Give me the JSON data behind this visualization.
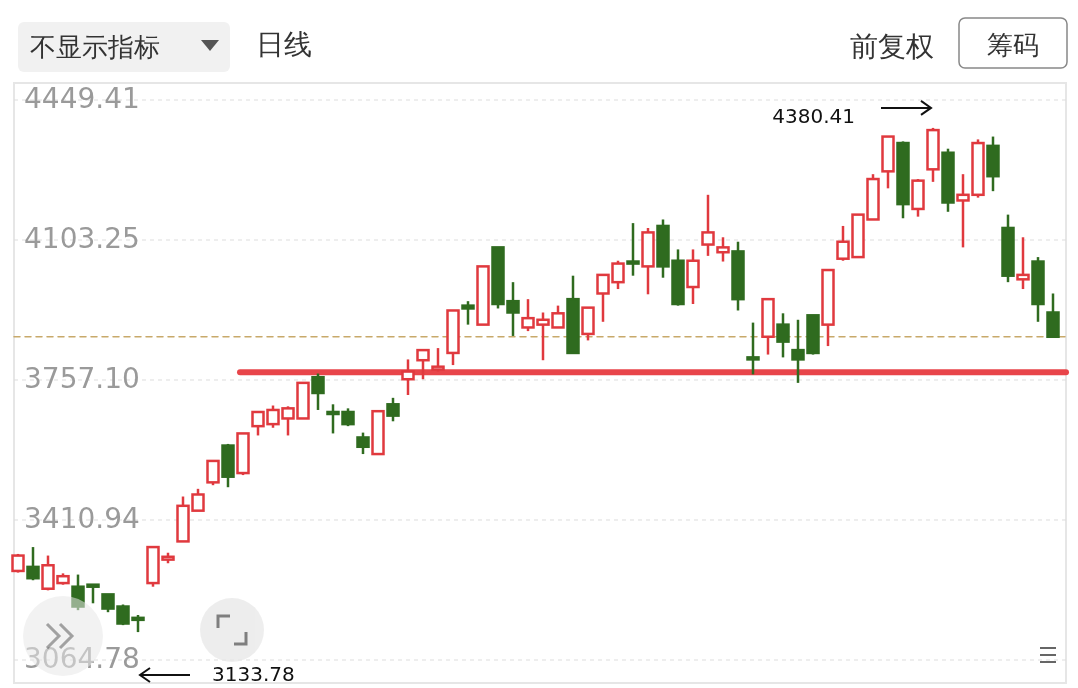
{
  "chart_data": {
    "type": "candlestick",
    "categories": [
      null,
      null,
      null,
      null,
      null,
      null,
      null,
      null,
      null,
      null,
      null,
      null,
      null,
      null,
      null,
      null,
      null,
      null,
      null,
      null,
      null,
      null,
      null,
      null,
      null,
      null,
      null,
      null,
      null,
      null,
      null,
      null,
      null,
      null,
      null,
      null,
      null,
      null,
      null,
      null,
      null,
      null,
      null,
      null,
      null,
      null,
      null,
      null,
      null,
      null,
      null,
      null,
      null,
      null,
      null,
      null,
      null,
      null,
      null,
      null,
      null,
      null,
      null,
      null,
      null,
      null,
      null,
      null,
      null,
      null
    ],
    "ohlc": [
      [
        3285,
        3327,
        3281,
        3323
      ],
      [
        3295,
        3344,
        3262,
        3267
      ],
      [
        3241,
        3323,
        3237,
        3299
      ],
      [
        3255,
        3279,
        3251,
        3272
      ],
      [
        3246,
        3276,
        3188,
        3197
      ],
      [
        3251,
        3251,
        3205,
        3246
      ],
      [
        3227,
        3227,
        3183,
        3192
      ],
      [
        3197,
        3202,
        3151,
        3155
      ],
      [
        3169,
        3176,
        3133.78,
        3165
      ],
      [
        3255,
        3344,
        3246,
        3344
      ],
      [
        3313,
        3330,
        3304,
        3320
      ],
      [
        3358,
        3469,
        3358,
        3446
      ],
      [
        3434,
        3488,
        3434,
        3474
      ],
      [
        3504,
        3557,
        3497,
        3557
      ],
      [
        3595,
        3599,
        3492,
        3518
      ],
      [
        3527,
        3625,
        3522,
        3625
      ],
      [
        3643,
        3678,
        3620,
        3678
      ],
      [
        3648,
        3694,
        3639,
        3683
      ],
      [
        3662,
        3692,
        3620,
        3687
      ],
      [
        3662,
        3750,
        3662,
        3750
      ],
      [
        3764,
        3773,
        3683,
        3725
      ],
      [
        3678,
        3697,
        3625,
        3674
      ],
      [
        3678,
        3687,
        3643,
        3648
      ],
      [
        3615,
        3627,
        3574,
        3592
      ],
      [
        3574,
        3680,
        3574,
        3680
      ],
      [
        3697,
        3713,
        3655,
        3669
      ],
      [
        3759,
        3808,
        3720,
        3778
      ],
      [
        3806,
        3831,
        3759,
        3831
      ],
      [
        3783,
        3836,
        3778,
        3790
      ],
      [
        3824,
        3929,
        3794,
        3929
      ],
      [
        3941,
        3952,
        3894,
        3934
      ],
      [
        3894,
        4038,
        3894,
        4038
      ],
      [
        4085,
        4085,
        3934,
        3945
      ],
      [
        3952,
        3999,
        3866,
        3924
      ],
      [
        3887,
        3957,
        3878,
        3910
      ],
      [
        3894,
        3924,
        3806,
        3906
      ],
      [
        3887,
        3941,
        3887,
        3922
      ],
      [
        3957,
        4015,
        3824,
        3824
      ],
      [
        3871,
        3936,
        3855,
        3936
      ],
      [
        3971,
        4017,
        3901,
        4017
      ],
      [
        3999,
        4052,
        3982,
        4045
      ],
      [
        4050,
        4145,
        4015,
        4045
      ],
      [
        4038,
        4133,
        3969,
        4122
      ],
      [
        4138,
        4154,
        4010,
        4038
      ],
      [
        4052,
        4080,
        3941,
        3945
      ],
      [
        3987,
        4080,
        3945,
        4052
      ],
      [
        4092,
        4215,
        4064,
        4122
      ],
      [
        4073,
        4110,
        4050,
        4085
      ],
      [
        4075,
        4099,
        3929,
        3957
      ],
      [
        3813,
        3899,
        3771,
        3808
      ],
      [
        3864,
        3957,
        3820,
        3957
      ],
      [
        3894,
        3922,
        3813,
        3852
      ],
      [
        3831,
        3906,
        3750,
        3808
      ],
      [
        3917,
        3917,
        3820,
        3824
      ],
      [
        3894,
        4029,
        3841,
        4029
      ],
      [
        4057,
        4138,
        4052,
        4099
      ],
      [
        4061,
        4166,
        4061,
        4166
      ],
      [
        4154,
        4266,
        4154,
        4254
      ],
      [
        4273,
        4359,
        4231,
        4359
      ],
      [
        4343,
        4347,
        4157,
        4192
      ],
      [
        4180,
        4254,
        4161,
        4250
      ],
      [
        4278,
        4380.41,
        4247,
        4375
      ],
      [
        4319,
        4329,
        4173,
        4196
      ],
      [
        4201,
        4266,
        4085,
        4215
      ],
      [
        4215,
        4352,
        4208,
        4343
      ],
      [
        4336,
        4359,
        4224,
        4261
      ],
      [
        4133,
        4166,
        3999,
        4015
      ],
      [
        4006,
        4110,
        3982,
        4017
      ],
      [
        4050,
        4061,
        3901,
        3945
      ],
      [
        3924,
        3971,
        3864,
        3864
      ]
    ],
    "colors": [
      "#e0393e",
      "#2f6b1f",
      "#e0393e",
      "#e0393e",
      "#2f6b1f",
      "#2f6b1f",
      "#2f6b1f",
      "#2f6b1f",
      "#2f6b1f",
      "#e0393e",
      "#e0393e",
      "#e0393e",
      "#e0393e",
      "#e0393e",
      "#2f6b1f",
      "#e0393e",
      "#e0393e",
      "#e0393e",
      "#e0393e",
      "#e0393e",
      "#2f6b1f",
      "#2f6b1f",
      "#2f6b1f",
      "#2f6b1f",
      "#e0393e",
      "#2f6b1f",
      "#e0393e",
      "#e0393e",
      "#e0393e",
      "#e0393e",
      "#2f6b1f",
      "#e0393e",
      "#2f6b1f",
      "#2f6b1f",
      "#e0393e",
      "#e0393e",
      "#e0393e",
      "#2f6b1f",
      "#e0393e",
      "#e0393e",
      "#e0393e",
      "#2f6b1f",
      "#e0393e",
      "#2f6b1f",
      "#2f6b1f",
      "#e0393e",
      "#e0393e",
      "#e0393e",
      "#2f6b1f",
      "#2f6b1f",
      "#e0393e",
      "#2f6b1f",
      "#2f6b1f",
      "#2f6b1f",
      "#e0393e",
      "#e0393e",
      "#e0393e",
      "#e0393e",
      "#e0393e",
      "#2f6b1f",
      "#e0393e",
      "#e0393e",
      "#2f6b1f",
      "#e0393e",
      "#e0393e",
      "#2f6b1f",
      "#2f6b1f",
      "#e0393e",
      "#2f6b1f",
      "#2f6b1f"
    ],
    "ylim": [
      3064.78,
      4449.41
    ],
    "yticks": [
      4449.41,
      4103.25,
      {
        "value": 3757.1,
        "label": "3757.10"
      },
      3410.94,
      3064.78
    ],
    "tick_labels": "y",
    "grid": "y",
    "ref_lines": [
      {
        "axis": "y",
        "value": 3864,
        "color": "#c8a96a",
        "line_style": "dashed"
      },
      {
        "axis": "y",
        "value": 3776,
        "color": "#e8454a",
        "line_style": "solid"
      }
    ],
    "annotations": [
      "不显示指标",
      "日线",
      "前复权",
      "筹码",
      "4380.41",
      "3133.78"
    ]
  }
}
